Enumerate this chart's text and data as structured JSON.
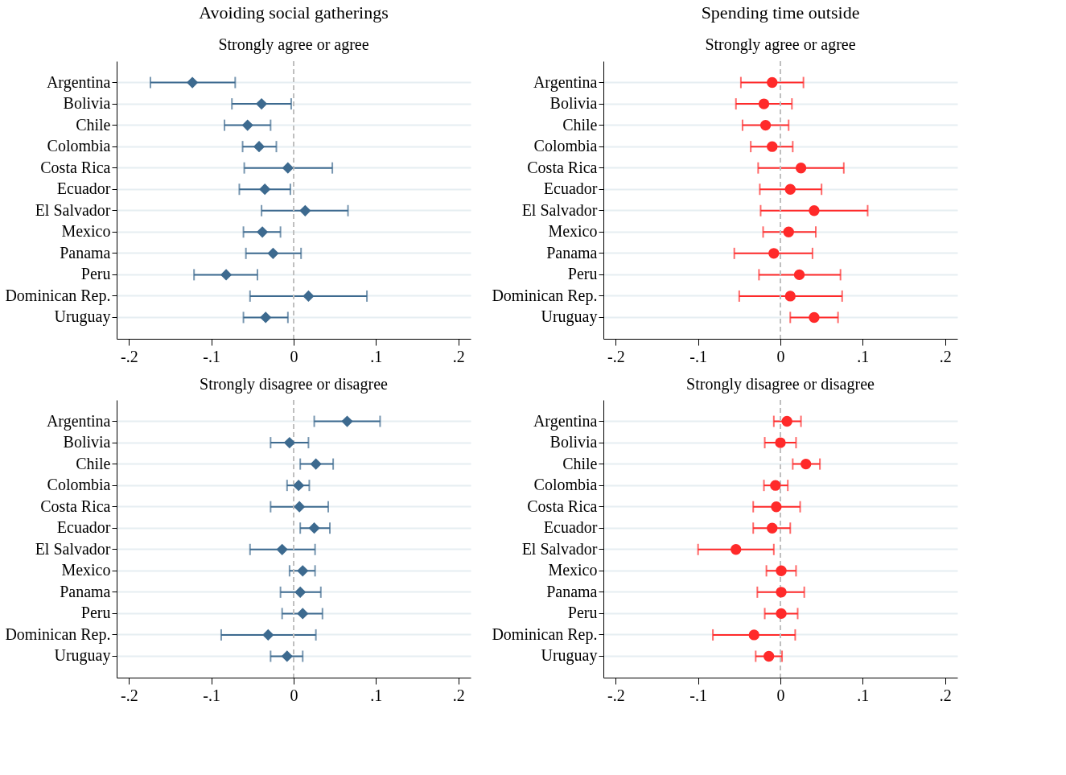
{
  "chart_data": [
    {
      "type": "scatter",
      "orientation": "horizontal",
      "title": "Avoiding social gatherings",
      "subtitle": "Strongly agree or agree",
      "marker": "diamond",
      "grid": "y",
      "categories": [
        "Argentina",
        "Bolivia",
        "Chile",
        "Colombia",
        "Costa Rica",
        "Ecuador",
        "El Salvador",
        "Mexico",
        "Panama",
        "Peru",
        "Dominican Rep.",
        "Uruguay"
      ],
      "series": [
        {
          "color": "#3d6a8f",
          "values": [
            -0.123,
            -0.039,
            -0.056,
            -0.042,
            -0.007,
            -0.035,
            0.014,
            -0.038,
            -0.025,
            -0.082,
            0.018,
            -0.034
          ],
          "errors": [
            [
              -0.174,
              -0.071
            ],
            [
              -0.075,
              -0.003
            ],
            [
              -0.084,
              -0.028
            ],
            [
              -0.062,
              -0.021
            ],
            [
              -0.06,
              0.047
            ],
            [
              -0.066,
              -0.004
            ],
            [
              -0.039,
              0.066
            ],
            [
              -0.061,
              -0.016
            ],
            [
              -0.058,
              0.009
            ],
            [
              -0.121,
              -0.044
            ],
            [
              -0.053,
              0.089
            ],
            [
              -0.061,
              -0.007
            ]
          ]
        }
      ],
      "xlim": [
        -0.215,
        0.215
      ],
      "xticks": [
        {
          "value": -0.2,
          "label": "-.2"
        },
        {
          "value": -0.1,
          "label": "-.1"
        },
        0,
        {
          "value": 0.1,
          "label": ".1"
        },
        {
          "value": 0.2,
          "label": ".2"
        }
      ],
      "ref_lines": [
        {
          "axis": "x",
          "value": 0,
          "color": "#bfbfbf",
          "line_style": "dashed"
        }
      ]
    },
    {
      "type": "scatter",
      "orientation": "horizontal",
      "title": "Spending time outside",
      "subtitle": "Strongly agree or agree",
      "marker": "circle",
      "grid": "y",
      "categories": [
        "Argentina",
        "Bolivia",
        "Chile",
        "Colombia",
        "Costa Rica",
        "Ecuador",
        "El Salvador",
        "Mexico",
        "Panama",
        "Peru",
        "Dominican Rep.",
        "Uruguay"
      ],
      "series": [
        {
          "color": "#ff2a2a",
          "values": [
            -0.01,
            -0.02,
            -0.018,
            -0.01,
            0.025,
            0.012,
            0.041,
            0.01,
            -0.008,
            0.023,
            0.012,
            0.041
          ],
          "errors": [
            [
              -0.048,
              0.028
            ],
            [
              -0.054,
              0.014
            ],
            [
              -0.046,
              0.01
            ],
            [
              -0.036,
              0.015
            ],
            [
              -0.027,
              0.077
            ],
            [
              -0.025,
              0.05
            ],
            [
              -0.024,
              0.106
            ],
            [
              -0.021,
              0.043
            ],
            [
              -0.056,
              0.039
            ],
            [
              -0.026,
              0.073
            ],
            [
              -0.05,
              0.075
            ],
            [
              0.012,
              0.07
            ]
          ]
        }
      ],
      "xlim": [
        -0.215,
        0.215
      ],
      "xticks": [
        {
          "value": -0.2,
          "label": "-.2"
        },
        {
          "value": -0.1,
          "label": "-.1"
        },
        0,
        {
          "value": 0.1,
          "label": ".1"
        },
        {
          "value": 0.2,
          "label": ".2"
        }
      ],
      "ref_lines": [
        {
          "axis": "x",
          "value": 0,
          "color": "#bfbfbf",
          "line_style": "dashed"
        }
      ]
    },
    {
      "type": "scatter",
      "orientation": "horizontal",
      "title": "Strongly disagree or disagree",
      "marker": "diamond",
      "grid": "y",
      "categories": [
        "Argentina",
        "Bolivia",
        "Chile",
        "Colombia",
        "Costa Rica",
        "Ecuador",
        "El Salvador",
        "Mexico",
        "Panama",
        "Peru",
        "Dominican Rep.",
        "Uruguay"
      ],
      "series": [
        {
          "color": "#3d6a8f",
          "values": [
            0.065,
            -0.005,
            0.027,
            0.006,
            0.007,
            0.025,
            -0.014,
            0.011,
            0.008,
            0.011,
            -0.031,
            -0.008
          ],
          "errors": [
            [
              0.025,
              0.105
            ],
            [
              -0.028,
              0.018
            ],
            [
              0.008,
              0.048
            ],
            [
              -0.008,
              0.019
            ],
            [
              -0.028,
              0.042
            ],
            [
              0.008,
              0.044
            ],
            [
              -0.053,
              0.026
            ],
            [
              -0.005,
              0.026
            ],
            [
              -0.016,
              0.033
            ],
            [
              -0.014,
              0.035
            ],
            [
              -0.088,
              0.027
            ],
            [
              -0.028,
              0.011
            ]
          ]
        }
      ],
      "xlim": [
        -0.215,
        0.215
      ],
      "xticks": [
        {
          "value": -0.2,
          "label": "-.2"
        },
        {
          "value": -0.1,
          "label": "-.1"
        },
        0,
        {
          "value": 0.1,
          "label": ".1"
        },
        {
          "value": 0.2,
          "label": ".2"
        }
      ],
      "ref_lines": [
        {
          "axis": "x",
          "value": 0,
          "color": "#bfbfbf",
          "line_style": "dashed"
        }
      ]
    },
    {
      "type": "scatter",
      "orientation": "horizontal",
      "title": "Strongly disagree or disagree",
      "marker": "circle",
      "grid": "y",
      "categories": [
        "Argentina",
        "Bolivia",
        "Chile",
        "Colombia",
        "Costa Rica",
        "Ecuador",
        "El Salvador",
        "Mexico",
        "Panama",
        "Peru",
        "Dominican Rep.",
        "Uruguay"
      ],
      "series": [
        {
          "color": "#ff2a2a",
          "values": [
            0.008,
            0.0,
            0.031,
            -0.006,
            -0.005,
            -0.01,
            -0.054,
            0.001,
            0.001,
            0.001,
            -0.032,
            -0.014
          ],
          "errors": [
            [
              -0.008,
              0.025
            ],
            [
              -0.019,
              0.019
            ],
            [
              0.015,
              0.048
            ],
            [
              -0.02,
              0.009
            ],
            [
              -0.033,
              0.024
            ],
            [
              -0.033,
              0.012
            ],
            [
              -0.1,
              -0.008
            ],
            [
              -0.017,
              0.019
            ],
            [
              -0.028,
              0.029
            ],
            [
              -0.019,
              0.021
            ],
            [
              -0.082,
              0.018
            ],
            [
              -0.03,
              0.002
            ]
          ]
        }
      ],
      "xlim": [
        -0.215,
        0.215
      ],
      "xticks": [
        {
          "value": -0.2,
          "label": "-.2"
        },
        {
          "value": -0.1,
          "label": "-.1"
        },
        0,
        {
          "value": 0.1,
          "label": ".1"
        },
        {
          "value": 0.2,
          "label": ".2"
        }
      ],
      "ref_lines": [
        {
          "axis": "x",
          "value": 0,
          "color": "#bfbfbf",
          "line_style": "dashed"
        }
      ]
    }
  ]
}
